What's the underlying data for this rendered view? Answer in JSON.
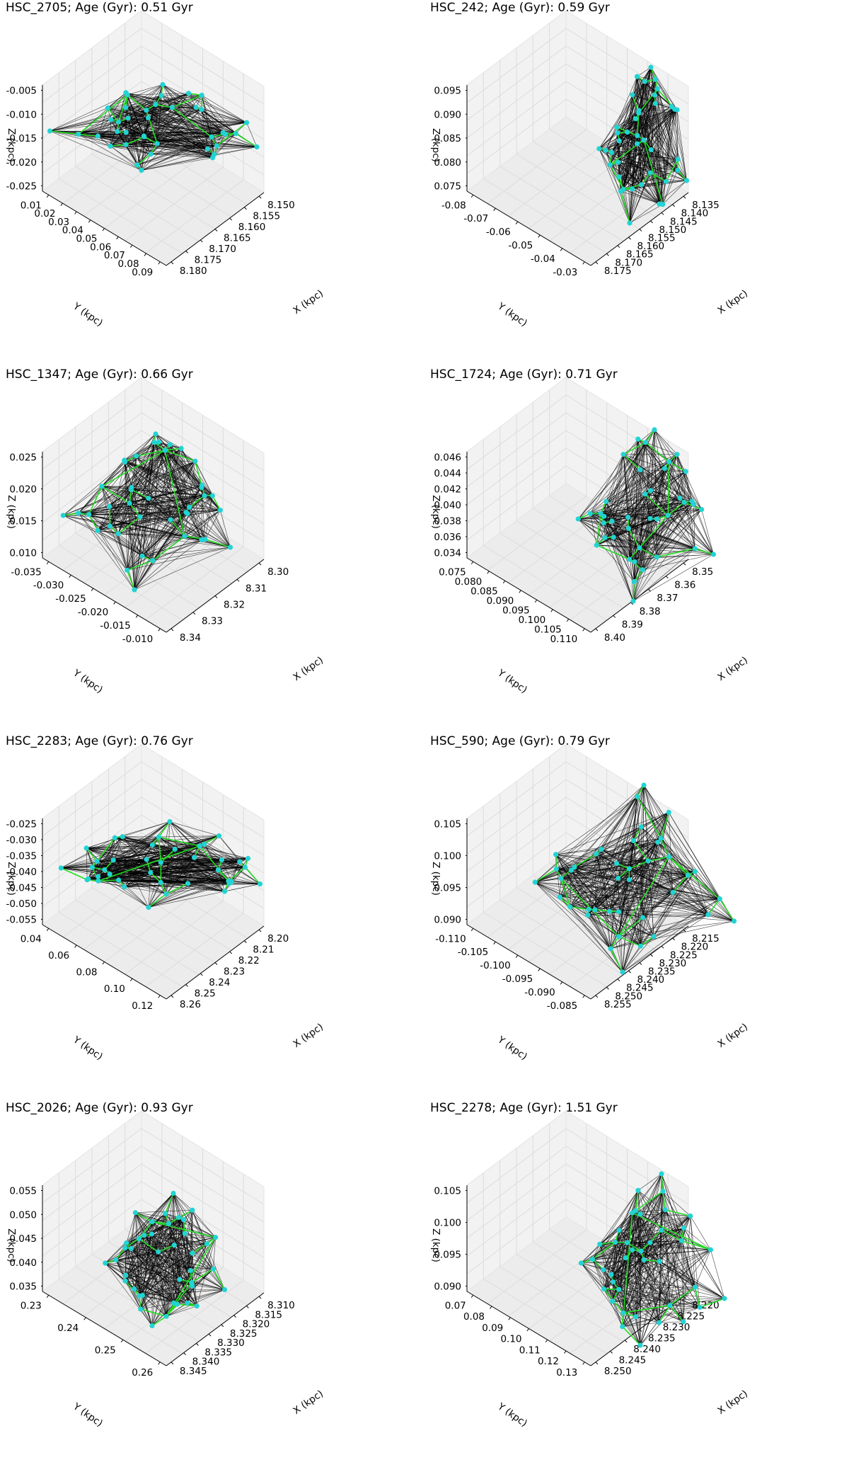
{
  "colors": {
    "edge": "#000000",
    "mst_edge": "#22dd22",
    "node": "#22d3d3",
    "pane": "#f2f2f2",
    "grid": "#dcdcdc"
  },
  "chart_data": [
    {
      "type": "scatter",
      "title": "HSC_2705; Age (Gyr): 0.51 Gyr",
      "xlabel": "X (kpc)",
      "ylabel": "Y (kpc)",
      "zlabel": "Z (kpc)",
      "x_ticks": [
        "8.150",
        "8.155",
        "8.160",
        "8.165",
        "8.170",
        "8.175",
        "8.180"
      ],
      "y_ticks": [
        "0.01",
        "0.02",
        "0.03",
        "0.04",
        "0.05",
        "0.06",
        "0.07",
        "0.08",
        "0.09"
      ],
      "z_ticks": [
        "-0.005",
        "-0.010",
        "-0.015",
        "-0.020",
        "-0.025"
      ],
      "grid": true,
      "projection": "3d"
    },
    {
      "type": "scatter",
      "title": "HSC_242; Age (Gyr): 0.59 Gyr",
      "xlabel": "X (kpc)",
      "ylabel": "Y (kpc)",
      "zlabel": "Z (kpc)",
      "x_ticks": [
        "8.135",
        "8.140",
        "8.145",
        "8.150",
        "8.155",
        "8.160",
        "8.165",
        "8.170",
        "8.175"
      ],
      "y_ticks": [
        "-0.08",
        "-0.07",
        "-0.06",
        "-0.05",
        "-0.04",
        "-0.03"
      ],
      "z_ticks": [
        "0.095",
        "0.090",
        "0.085",
        "0.080",
        "0.075"
      ],
      "grid": true,
      "projection": "3d"
    },
    {
      "type": "scatter",
      "title": "HSC_1347; Age (Gyr): 0.66 Gyr",
      "xlabel": "X (kpc)",
      "ylabel": "Y (kpc)",
      "zlabel": "Z (kpc)",
      "x_ticks": [
        "8.30",
        "8.31",
        "8.32",
        "8.33",
        "8.34"
      ],
      "y_ticks": [
        "-0.035",
        "-0.030",
        "-0.025",
        "-0.020",
        "-0.015",
        "-0.010"
      ],
      "z_ticks": [
        "0.025",
        "0.020",
        "0.015",
        "0.010"
      ],
      "grid": true,
      "projection": "3d"
    },
    {
      "type": "scatter",
      "title": "HSC_1724; Age (Gyr): 0.71 Gyr",
      "xlabel": "X (kpc)",
      "ylabel": "Y (kpc)",
      "zlabel": "Z (kpc)",
      "x_ticks": [
        "8.35",
        "8.36",
        "8.37",
        "8.38",
        "8.39",
        "8.40"
      ],
      "y_ticks": [
        "0.075",
        "0.080",
        "0.085",
        "0.090",
        "0.095",
        "0.100",
        "0.105",
        "0.110"
      ],
      "z_ticks": [
        "0.046",
        "0.044",
        "0.042",
        "0.040",
        "0.038",
        "0.036",
        "0.034"
      ],
      "grid": true,
      "projection": "3d"
    },
    {
      "type": "scatter",
      "title": "HSC_2283; Age (Gyr): 0.76 Gyr",
      "xlabel": "X (kpc)",
      "ylabel": "Y (kpc)",
      "zlabel": "Z (kpc)",
      "x_ticks": [
        "8.20",
        "8.21",
        "8.22",
        "8.23",
        "8.24",
        "8.25",
        "8.26"
      ],
      "y_ticks": [
        "0.04",
        "0.06",
        "0.08",
        "0.10",
        "0.12"
      ],
      "z_ticks": [
        "-0.025",
        "-0.030",
        "-0.035",
        "-0.040",
        "-0.045",
        "-0.050",
        "-0.055"
      ],
      "grid": true,
      "projection": "3d"
    },
    {
      "type": "scatter",
      "title": "HSC_590; Age (Gyr): 0.79 Gyr",
      "xlabel": "X (kpc)",
      "ylabel": "Y (kpc)",
      "zlabel": "Z (kpc)",
      "x_ticks": [
        "8.215",
        "8.220",
        "8.225",
        "8.230",
        "8.235",
        "8.240",
        "8.245",
        "8.250",
        "8.255"
      ],
      "y_ticks": [
        "-0.110",
        "-0.105",
        "-0.100",
        "-0.095",
        "-0.090",
        "-0.085"
      ],
      "z_ticks": [
        "0.105",
        "0.100",
        "0.095",
        "0.090"
      ],
      "grid": true,
      "projection": "3d"
    },
    {
      "type": "scatter",
      "title": "HSC_2026; Age (Gyr): 0.93 Gyr",
      "xlabel": "X (kpc)",
      "ylabel": "Y (kpc)",
      "zlabel": "Z (kpc)",
      "x_ticks": [
        "8.310",
        "8.315",
        "8.320",
        "8.325",
        "8.330",
        "8.335",
        "8.340",
        "8.345"
      ],
      "y_ticks": [
        "0.23",
        "0.24",
        "0.25",
        "0.26"
      ],
      "z_ticks": [
        "0.055",
        "0.050",
        "0.045",
        "0.040",
        "0.035"
      ],
      "grid": true,
      "projection": "3d"
    },
    {
      "type": "scatter",
      "title": "HSC_2278; Age (Gyr): 1.51 Gyr",
      "xlabel": "X (kpc)",
      "ylabel": "Y (kpc)",
      "zlabel": "Z (kpc)",
      "x_ticks": [
        "8.220",
        "8.225",
        "8.230",
        "8.235",
        "8.240",
        "8.245",
        "8.250"
      ],
      "y_ticks": [
        "0.07",
        "0.08",
        "0.09",
        "0.10",
        "0.11",
        "0.12",
        "0.13"
      ],
      "z_ticks": [
        "0.105",
        "0.100",
        "0.095",
        "0.090"
      ],
      "grid": true,
      "projection": "3d"
    }
  ]
}
